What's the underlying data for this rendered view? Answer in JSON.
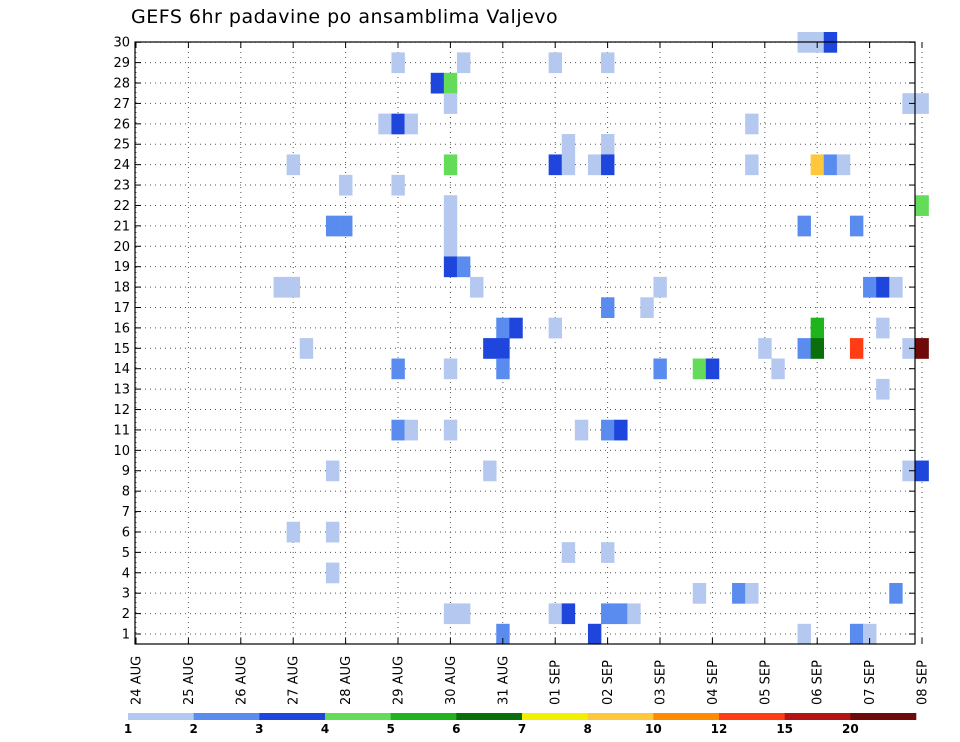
{
  "chart_data": {
    "type": "heatmap",
    "title": "GEFS 6hr padavine po ansamblima Valjevo",
    "xlabel": "",
    "ylabel": "",
    "x_tick_labels": [
      "24 AUG",
      "25 AUG",
      "26 AUG",
      "27 AUG",
      "28 AUG",
      "29 AUG",
      "30 AUG",
      "31 AUG",
      "01 SEP",
      "02 SEP",
      "03 SEP",
      "04 SEP",
      "05 SEP",
      "06 SEP",
      "07 SEP",
      "08 SEP"
    ],
    "y_tick_labels": [
      "1",
      "2",
      "3",
      "4",
      "5",
      "6",
      "7",
      "8",
      "9",
      "10",
      "11",
      "12",
      "13",
      "14",
      "15",
      "16",
      "17",
      "18",
      "19",
      "20",
      "21",
      "22",
      "23",
      "24",
      "25",
      "26",
      "27",
      "28",
      "29",
      "30"
    ],
    "xlim_days": [
      0,
      15
    ],
    "ylim": [
      0.5,
      30.5
    ],
    "members": 30,
    "grid": true,
    "cell_unit": "6h steps; x = days since 24 AUG",
    "colorbar": {
      "labels": [
        "1",
        "2",
        "3",
        "4",
        "5",
        "6",
        "7",
        "8",
        "10",
        "12",
        "15",
        "20"
      ],
      "colors": [
        "#b4c8f0",
        "#5a8cf0",
        "#1e46dc",
        "#64dc5a",
        "#1eb41e",
        "#0a6e0a",
        "#f0f000",
        "#ffc83c",
        "#ff8c00",
        "#ff3c14",
        "#b41414",
        "#6e0a0a"
      ]
    },
    "cells": [
      {
        "m": 30,
        "x": 12.75,
        "c": 0
      },
      {
        "m": 30,
        "x": 13.0,
        "c": 0
      },
      {
        "m": 30,
        "x": 13.25,
        "c": 2
      },
      {
        "m": 29,
        "x": 5.0,
        "c": 0
      },
      {
        "m": 29,
        "x": 6.25,
        "c": 0
      },
      {
        "m": 29,
        "x": 8.0,
        "c": 0
      },
      {
        "m": 29,
        "x": 9.0,
        "c": 0
      },
      {
        "m": 28,
        "x": 5.75,
        "c": 2
      },
      {
        "m": 28,
        "x": 6.0,
        "c": 3
      },
      {
        "m": 27,
        "x": 6.0,
        "c": 0
      },
      {
        "m": 27,
        "x": 14.75,
        "c": 0
      },
      {
        "m": 27,
        "x": 15.0,
        "c": 0
      },
      {
        "m": 26,
        "x": 4.75,
        "c": 0
      },
      {
        "m": 26,
        "x": 5.0,
        "c": 2
      },
      {
        "m": 26,
        "x": 5.25,
        "c": 0
      },
      {
        "m": 26,
        "x": 11.75,
        "c": 0
      },
      {
        "m": 25,
        "x": 8.25,
        "c": 0
      },
      {
        "m": 25,
        "x": 9.0,
        "c": 0
      },
      {
        "m": 24,
        "x": 3.0,
        "c": 0
      },
      {
        "m": 24,
        "x": 6.0,
        "c": 3
      },
      {
        "m": 24,
        "x": 8.0,
        "c": 2
      },
      {
        "m": 24,
        "x": 8.25,
        "c": 0
      },
      {
        "m": 24,
        "x": 8.75,
        "c": 0
      },
      {
        "m": 24,
        "x": 9.0,
        "c": 2
      },
      {
        "m": 24,
        "x": 11.75,
        "c": 0
      },
      {
        "m": 24,
        "x": 13.0,
        "c": 7
      },
      {
        "m": 24,
        "x": 13.25,
        "c": 1
      },
      {
        "m": 24,
        "x": 13.5,
        "c": 0
      },
      {
        "m": 23,
        "x": 4.0,
        "c": 0
      },
      {
        "m": 23,
        "x": 5.0,
        "c": 0
      },
      {
        "m": 22,
        "x": 6.0,
        "c": 0
      },
      {
        "m": 22,
        "x": 15.0,
        "c": 3
      },
      {
        "m": 21,
        "x": 3.75,
        "c": 1
      },
      {
        "m": 21,
        "x": 4.0,
        "c": 1
      },
      {
        "m": 21,
        "x": 6.0,
        "c": 0
      },
      {
        "m": 21,
        "x": 12.75,
        "c": 1
      },
      {
        "m": 21,
        "x": 13.75,
        "c": 1
      },
      {
        "m": 20,
        "x": 6.0,
        "c": 0
      },
      {
        "m": 19,
        "x": 6.0,
        "c": 2
      },
      {
        "m": 19,
        "x": 6.25,
        "c": 1
      },
      {
        "m": 18,
        "x": 2.75,
        "c": 0
      },
      {
        "m": 18,
        "x": 3.0,
        "c": 0
      },
      {
        "m": 18,
        "x": 6.5,
        "c": 0
      },
      {
        "m": 18,
        "x": 10.0,
        "c": 0
      },
      {
        "m": 18,
        "x": 14.0,
        "c": 1
      },
      {
        "m": 18,
        "x": 14.25,
        "c": 2
      },
      {
        "m": 18,
        "x": 14.5,
        "c": 0
      },
      {
        "m": 17,
        "x": 9.0,
        "c": 1
      },
      {
        "m": 17,
        "x": 9.75,
        "c": 0
      },
      {
        "m": 16,
        "x": 7.0,
        "c": 1
      },
      {
        "m": 16,
        "x": 7.25,
        "c": 2
      },
      {
        "m": 16,
        "x": 8.0,
        "c": 0
      },
      {
        "m": 16,
        "x": 13.0,
        "c": 4
      },
      {
        "m": 16,
        "x": 14.25,
        "c": 0
      },
      {
        "m": 15,
        "x": 3.25,
        "c": 0
      },
      {
        "m": 15,
        "x": 6.75,
        "c": 2
      },
      {
        "m": 15,
        "x": 7.0,
        "c": 2
      },
      {
        "m": 15,
        "x": 12.0,
        "c": 0
      },
      {
        "m": 15,
        "x": 12.75,
        "c": 1
      },
      {
        "m": 15,
        "x": 13.0,
        "c": 5
      },
      {
        "m": 15,
        "x": 13.75,
        "c": 9
      },
      {
        "m": 15,
        "x": 14.75,
        "c": 0
      },
      {
        "m": 15,
        "x": 15.0,
        "c": 11
      },
      {
        "m": 14,
        "x": 5.0,
        "c": 1
      },
      {
        "m": 14,
        "x": 6.0,
        "c": 0
      },
      {
        "m": 14,
        "x": 7.0,
        "c": 1
      },
      {
        "m": 14,
        "x": 10.0,
        "c": 1
      },
      {
        "m": 14,
        "x": 10.75,
        "c": 3
      },
      {
        "m": 14,
        "x": 11.0,
        "c": 2
      },
      {
        "m": 14,
        "x": 12.25,
        "c": 0
      },
      {
        "m": 13,
        "x": 14.25,
        "c": 0
      },
      {
        "m": 11,
        "x": 5.0,
        "c": 1
      },
      {
        "m": 11,
        "x": 5.25,
        "c": 0
      },
      {
        "m": 11,
        "x": 6.0,
        "c": 0
      },
      {
        "m": 11,
        "x": 8.5,
        "c": 0
      },
      {
        "m": 11,
        "x": 9.0,
        "c": 1
      },
      {
        "m": 11,
        "x": 9.25,
        "c": 2
      },
      {
        "m": 9,
        "x": 3.75,
        "c": 0
      },
      {
        "m": 9,
        "x": 6.75,
        "c": 0
      },
      {
        "m": 9,
        "x": 14.75,
        "c": 0
      },
      {
        "m": 9,
        "x": 15.0,
        "c": 2
      },
      {
        "m": 6,
        "x": 3.0,
        "c": 0
      },
      {
        "m": 6,
        "x": 3.75,
        "c": 0
      },
      {
        "m": 5,
        "x": 8.25,
        "c": 0
      },
      {
        "m": 5,
        "x": 9.0,
        "c": 0
      },
      {
        "m": 4,
        "x": 3.75,
        "c": 0
      },
      {
        "m": 3,
        "x": 10.75,
        "c": 0
      },
      {
        "m": 3,
        "x": 11.5,
        "c": 1
      },
      {
        "m": 3,
        "x": 11.75,
        "c": 0
      },
      {
        "m": 3,
        "x": 14.5,
        "c": 1
      },
      {
        "m": 2,
        "x": 6.0,
        "c": 0
      },
      {
        "m": 2,
        "x": 6.25,
        "c": 0
      },
      {
        "m": 2,
        "x": 8.0,
        "c": 0
      },
      {
        "m": 2,
        "x": 8.25,
        "c": 2
      },
      {
        "m": 2,
        "x": 9.0,
        "c": 1
      },
      {
        "m": 2,
        "x": 9.25,
        "c": 1
      },
      {
        "m": 2,
        "x": 9.5,
        "c": 0
      },
      {
        "m": 1,
        "x": 7.0,
        "c": 1
      },
      {
        "m": 1,
        "x": 8.75,
        "c": 2
      },
      {
        "m": 1,
        "x": 12.75,
        "c": 0
      },
      {
        "m": 1,
        "x": 13.75,
        "c": 1
      },
      {
        "m": 1,
        "x": 14.0,
        "c": 0
      }
    ]
  }
}
